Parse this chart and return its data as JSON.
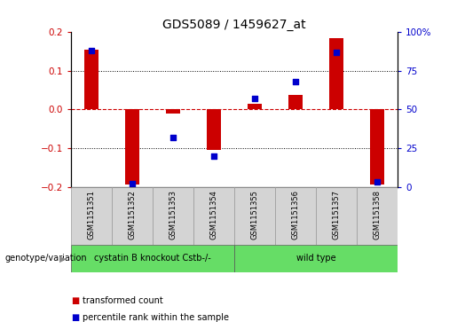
{
  "title": "GDS5089 / 1459627_at",
  "samples": [
    "GSM1151351",
    "GSM1151352",
    "GSM1151353",
    "GSM1151354",
    "GSM1151355",
    "GSM1151356",
    "GSM1151357",
    "GSM1151358"
  ],
  "transformed_count": [
    0.155,
    -0.195,
    -0.01,
    -0.105,
    0.015,
    0.038,
    0.185,
    -0.195
  ],
  "percentile_rank": [
    88,
    2,
    32,
    20,
    57,
    68,
    87,
    3
  ],
  "group1_label": "cystatin B knockout Cstb-/-",
  "group2_label": "wild type",
  "group_color": "#66dd66",
  "ylim_left": [
    -0.2,
    0.2
  ],
  "ylim_right": [
    0,
    100
  ],
  "yticks_left": [
    -0.2,
    -0.1,
    0.0,
    0.1,
    0.2
  ],
  "yticks_right": [
    0,
    25,
    50,
    75,
    100
  ],
  "ytick_labels_right": [
    "0",
    "25",
    "50",
    "75",
    "100%"
  ],
  "bar_color_red": "#cc0000",
  "dot_color_blue": "#0000cc",
  "zero_line_color": "#cc0000",
  "bg_color": "#ffffff",
  "legend_label1": "transformed count",
  "legend_label2": "percentile rank within the sample",
  "genotype_label": "genotype/variation",
  "bar_width": 0.35,
  "dot_size": 20,
  "sample_label_color": "#d4d4d4"
}
